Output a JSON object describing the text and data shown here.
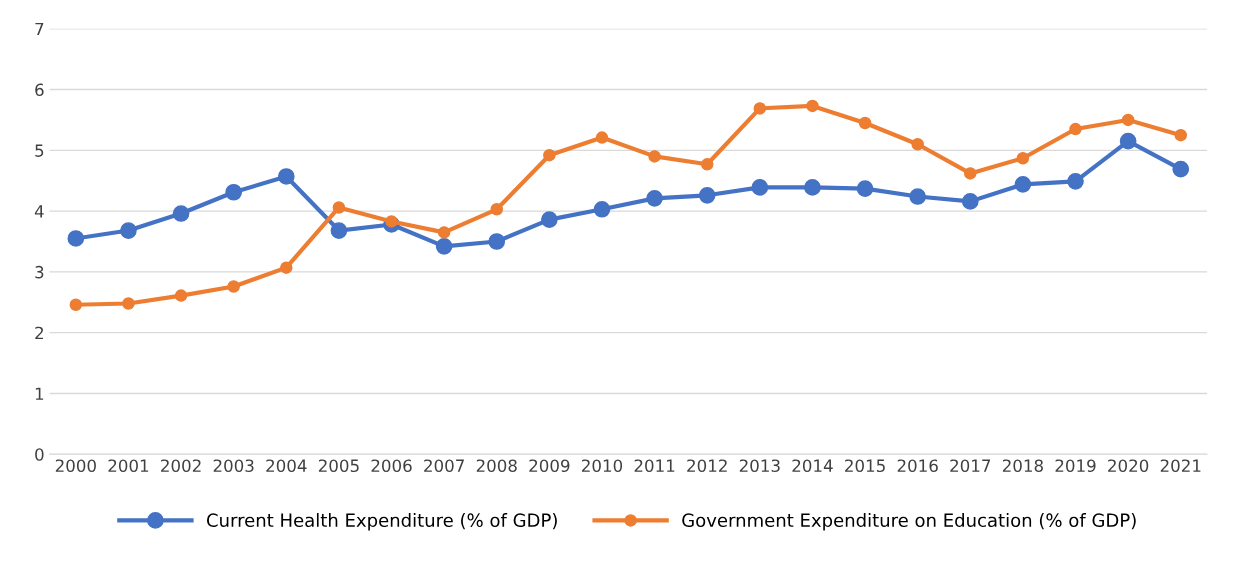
{
  "chart_data": {
    "type": "line",
    "categories": [
      "2000",
      "2001",
      "2002",
      "2003",
      "2004",
      "2005",
      "2006",
      "2007",
      "2008",
      "2009",
      "2010",
      "2011",
      "2012",
      "2013",
      "2014",
      "2015",
      "2016",
      "2017",
      "2018",
      "2019",
      "2020",
      "2021"
    ],
    "series": [
      {
        "name": "Current Health Expenditure (% of GDP)",
        "color": "#4472c4",
        "values": [
          3.55,
          3.68,
          3.96,
          4.31,
          4.57,
          3.68,
          3.78,
          3.42,
          3.5,
          3.86,
          4.03,
          4.21,
          4.26,
          4.39,
          4.39,
          4.37,
          4.24,
          4.16,
          4.44,
          4.49,
          5.15,
          4.69
        ]
      },
      {
        "name": "Government Expenditure on Education (% of GDP)",
        "color": "#ed7d31",
        "values": [
          2.46,
          2.48,
          2.61,
          2.76,
          3.07,
          4.06,
          3.83,
          3.65,
          4.03,
          4.92,
          5.21,
          4.9,
          4.77,
          5.69,
          5.73,
          5.45,
          5.1,
          4.62,
          4.87,
          5.35,
          5.5,
          5.25
        ]
      }
    ],
    "ylim": [
      0,
      7
    ],
    "yticks": [
      0,
      1,
      2,
      3,
      4,
      5,
      6,
      7
    ],
    "grid": "y",
    "legend": "bottom",
    "marker": "circle",
    "line_style": "solid"
  }
}
